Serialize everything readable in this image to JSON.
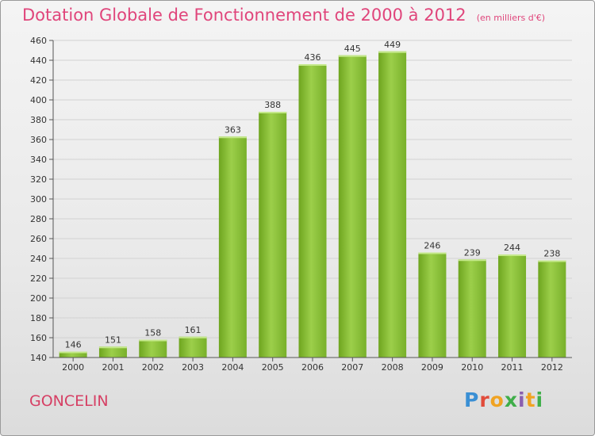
{
  "commune": "GONCELIN",
  "logo_text": "Proxiti",
  "chart_data": {
    "type": "bar",
    "title": "Dotation Globale de Fonctionnement de 2000 à 2012",
    "unit": "(en milliers d'€)",
    "categories": [
      "2000",
      "2001",
      "2002",
      "2003",
      "2004",
      "2005",
      "2006",
      "2007",
      "2008",
      "2009",
      "2010",
      "2011",
      "2012"
    ],
    "values": [
      146,
      151,
      158,
      161,
      363,
      388,
      436,
      445,
      449,
      246,
      239,
      244,
      238
    ],
    "ylim": [
      140,
      460
    ],
    "ytick_step": 20,
    "grid": true,
    "bar_color": "#8cc43c"
  }
}
